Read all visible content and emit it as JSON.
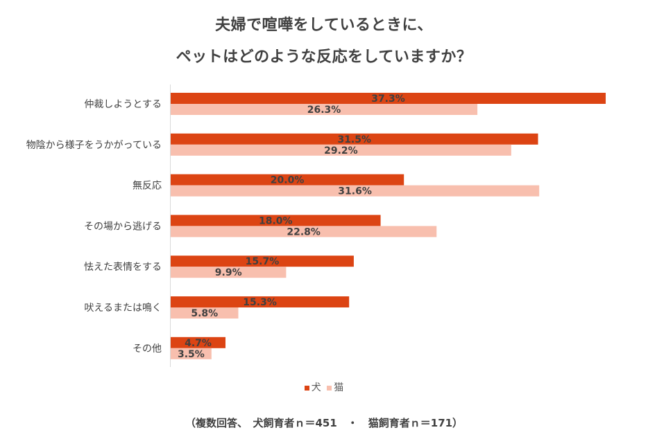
{
  "title_line1": "夫婦で喧嘩をしているときに、",
  "title_line2": "ペットはどのような反応をしていますか？",
  "footnote": "（複数回答、　犬飼育者ｎ＝451　・　猫飼育者ｎ＝171）",
  "chart_data": {
    "type": "bar",
    "orientation": "horizontal",
    "title": "夫婦で喧嘩をしているときに、ペットはどのような反応をしていますか？",
    "categories": [
      "仲裁しようとする",
      "物陰から様子をうかがっている",
      "無反応",
      "その場から逃げる",
      "怯えた表情をする",
      "吠えるまたは鳴く",
      "その他"
    ],
    "series": [
      {
        "name": "犬",
        "color": "#DC4413",
        "values": [
          37.3,
          31.5,
          20.0,
          18.0,
          15.7,
          15.3,
          4.7
        ],
        "labels": [
          "37.3%",
          "31.5%",
          "20.0%",
          "18.0%",
          "15.7%",
          "15.3%",
          "4.7%"
        ]
      },
      {
        "name": "猫",
        "color": "#F8BFAE",
        "values": [
          26.3,
          29.2,
          31.6,
          22.8,
          9.9,
          5.8,
          3.5
        ],
        "labels": [
          "26.3%",
          "29.2%",
          "31.6%",
          "22.8%",
          "9.9%",
          "5.8%",
          "3.5%"
        ]
      }
    ],
    "xlim": [
      0,
      40
    ],
    "grid": false,
    "legend_position": "bottom"
  }
}
